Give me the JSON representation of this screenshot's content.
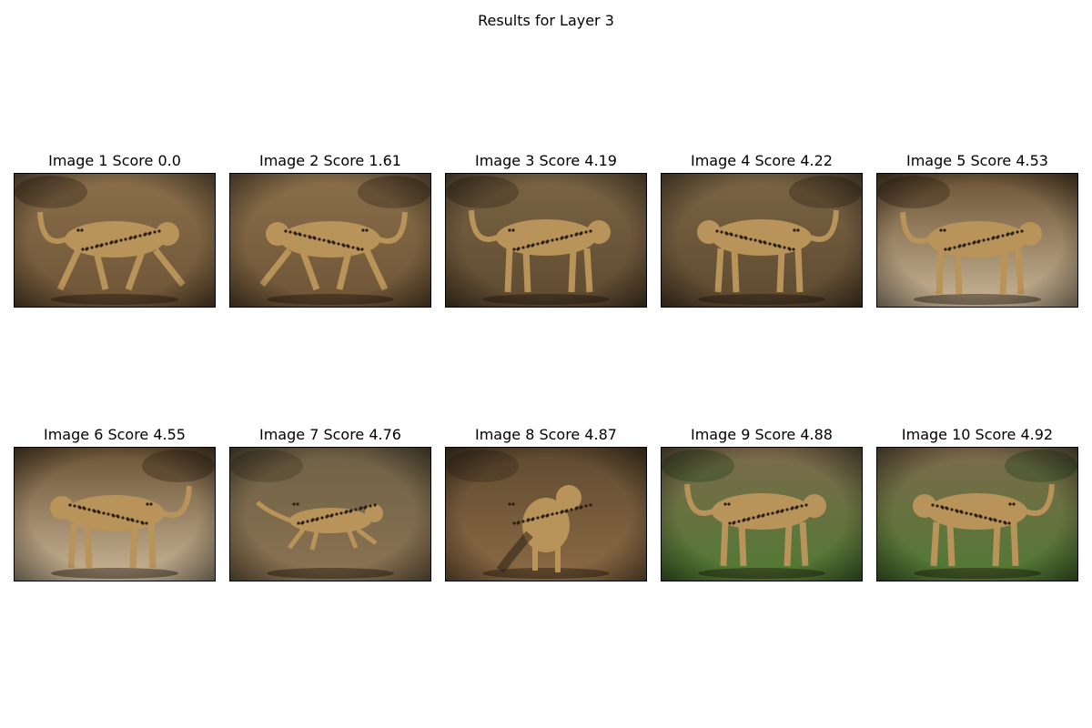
{
  "figure": {
    "title": "Results for Layer 3"
  },
  "panels": [
    {
      "title": "Image 1 Score 0.0",
      "image": "cheetah walking left-to-right on dry ground",
      "scene": "dry",
      "flip": false,
      "pose": "stride"
    },
    {
      "title": "Image 2 Score 1.61",
      "image": "mirrored cheetah walking on dry ground",
      "scene": "dry",
      "flip": true,
      "pose": "stride"
    },
    {
      "title": "Image 3 Score 4.19",
      "image": "cheetah standing, head turned right",
      "scene": "dirt",
      "flip": false,
      "pose": "stand"
    },
    {
      "title": "Image 4 Score 4.22",
      "image": "mirrored cheetah standing",
      "scene": "dirt",
      "flip": true,
      "pose": "stand"
    },
    {
      "title": "Image 5 Score 4.53",
      "image": "cheetah walking on sand near brush",
      "scene": "sand",
      "flip": false,
      "pose": "walk"
    },
    {
      "title": "Image 6 Score 4.55",
      "image": "mirrored cheetah walking on sand",
      "scene": "sand",
      "flip": true,
      "pose": "walk"
    },
    {
      "title": "Image 7 Score 4.76",
      "image": "cheetah running across a clearing",
      "scene": "field",
      "flip": false,
      "pose": "run"
    },
    {
      "title": "Image 8 Score 4.87",
      "image": "cheetah walking toward camera on a trail",
      "scene": "trail",
      "flip": false,
      "pose": "front"
    },
    {
      "title": "Image 9 Score 4.88",
      "image": "cheetah standing on green grass",
      "scene": "grass",
      "flip": false,
      "pose": "stand"
    },
    {
      "title": "Image 10 Score 4.92",
      "image": "mirrored cheetah standing on green grass",
      "scene": "grass",
      "flip": true,
      "pose": "stand"
    }
  ]
}
